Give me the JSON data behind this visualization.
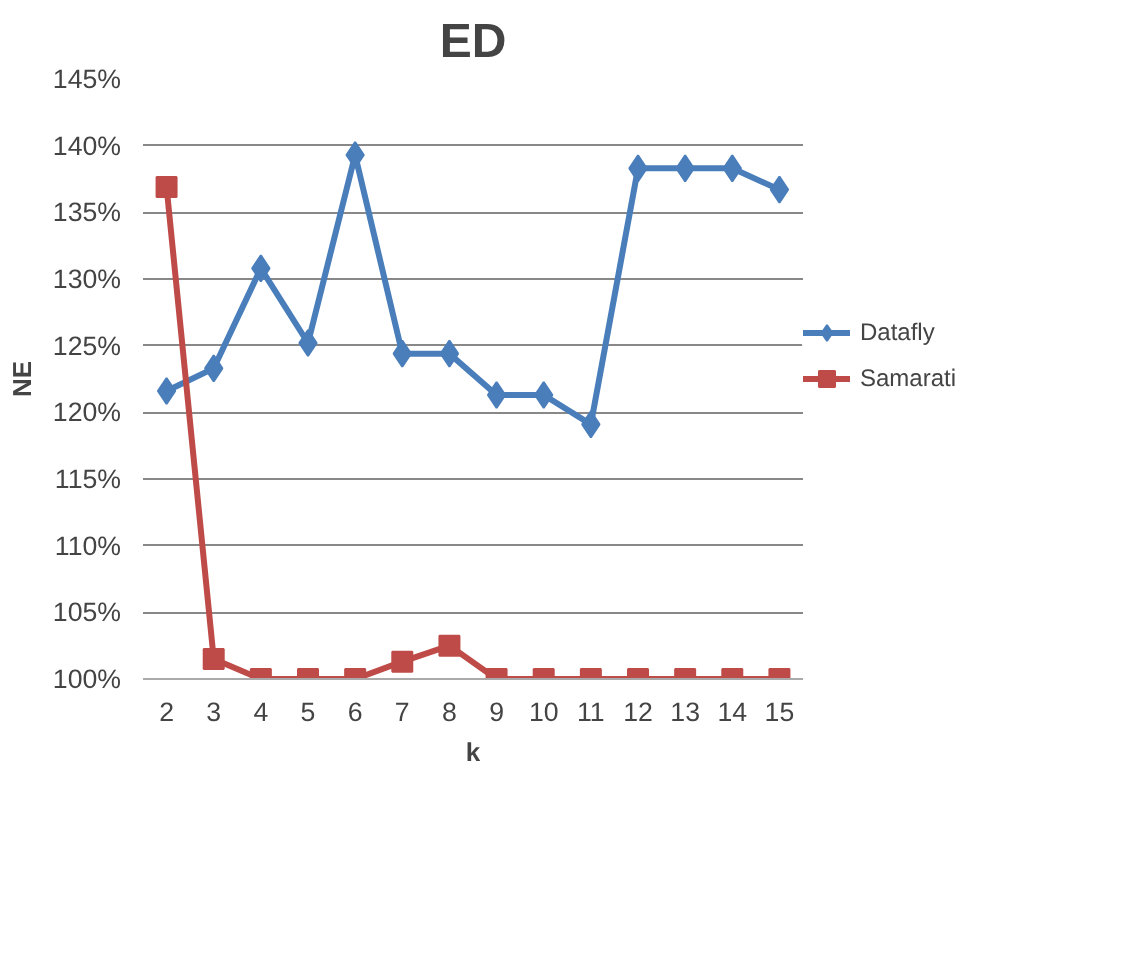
{
  "chart_data": {
    "type": "line",
    "title": "ED",
    "xlabel": "k",
    "ylabel": "NE",
    "categories": [
      "2",
      "3",
      "4",
      "5",
      "6",
      "7",
      "8",
      "9",
      "10",
      "11",
      "12",
      "13",
      "14",
      "15"
    ],
    "series": [
      {
        "name": "Datafly",
        "color": "#4a7ebb",
        "marker": "diamond",
        "values": [
          121.6,
          123.3,
          130.8,
          125.2,
          139.3,
          124.4,
          124.4,
          121.3,
          121.3,
          119.1,
          138.3,
          138.3,
          138.3,
          136.7
        ]
      },
      {
        "name": "Samarati",
        "color": "#be4b48",
        "marker": "square",
        "values": [
          136.9,
          101.5,
          100,
          100,
          100,
          101.3,
          102.5,
          100,
          100,
          100,
          100,
          100,
          100,
          100
        ]
      }
    ],
    "ylim": [
      100,
      145
    ],
    "yticks": [
      {
        "value": 100,
        "label": "100%"
      },
      {
        "value": 105,
        "label": "105%"
      },
      {
        "value": 110,
        "label": "110%"
      },
      {
        "value": 115,
        "label": "115%"
      },
      {
        "value": 120,
        "label": "120%"
      },
      {
        "value": 125,
        "label": "125%"
      },
      {
        "value": 130,
        "label": "130%"
      },
      {
        "value": 135,
        "label": "135%"
      },
      {
        "value": 140,
        "label": "140%"
      },
      {
        "value": 145,
        "label": "145%"
      }
    ],
    "grid": "y",
    "legend": "right",
    "line_style": "solid"
  }
}
